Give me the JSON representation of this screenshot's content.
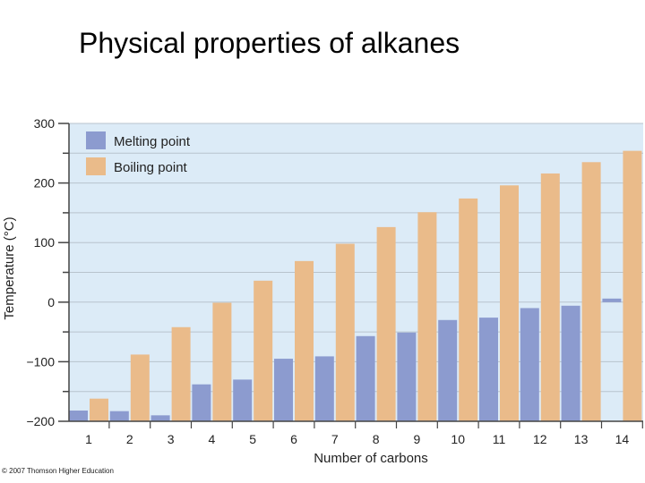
{
  "title": "Physical properties of alkanes",
  "copyright": "© 2007 Thomson Higher Education",
  "colors": {
    "plot_bg": "#dcebf7",
    "melting": "#8c9bcf",
    "boiling": "#eabb8a",
    "grid": "#b8c3cd",
    "axis": "#444444"
  },
  "chart_data": {
    "type": "bar",
    "categories": [
      "1",
      "2",
      "3",
      "4",
      "5",
      "6",
      "7",
      "8",
      "9",
      "10",
      "11",
      "12",
      "13",
      "14"
    ],
    "series": [
      {
        "name": "Melting point",
        "values": [
          -182,
          -183,
          -190,
          -138,
          -130,
          -95,
          -91,
          -57,
          -51,
          -30,
          -26,
          -10,
          -6,
          6
        ]
      },
      {
        "name": "Boiling point",
        "values": [
          -162,
          -88,
          -42,
          -1,
          36,
          69,
          98,
          126,
          151,
          174,
          196,
          216,
          235,
          254
        ]
      }
    ],
    "xlabel": "Number of carbons",
    "ylabel": "Temperature (°C)",
    "ylim": [
      -200,
      300
    ],
    "yticks": [
      "300",
      "200",
      "100",
      "0",
      "−100",
      "−200"
    ],
    "ytick_values": [
      300,
      200,
      100,
      0,
      -100,
      -200
    ],
    "grid": true,
    "legend_position": "top-left"
  }
}
